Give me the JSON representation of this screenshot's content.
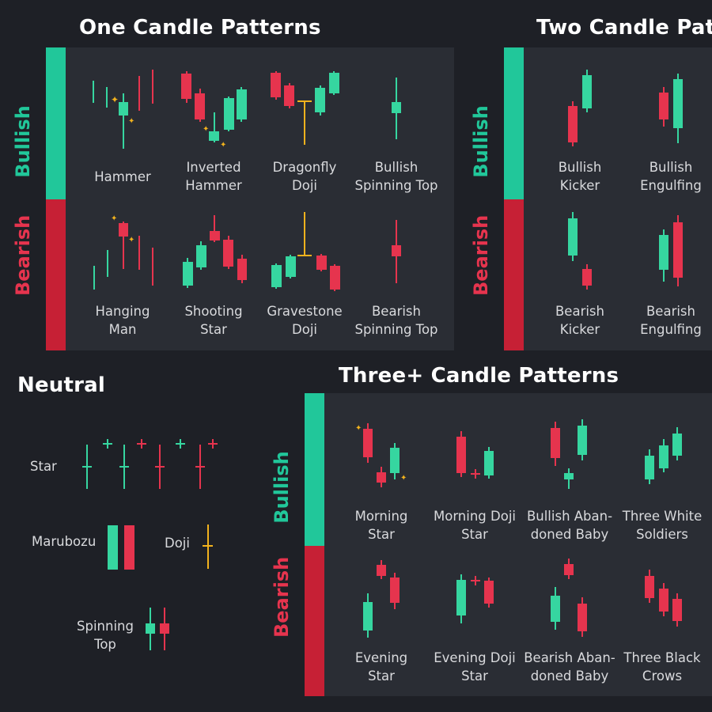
{
  "colors": {
    "background": "#1e2026",
    "panel": "#2a2d34",
    "bullish": "#21c79a",
    "bearish": "#c62035",
    "candle_green": "#36d6a0",
    "candle_red": "#e6344e",
    "doji_yellow": "#f2b21d"
  },
  "one_candle": {
    "title": "One Candle Patterns",
    "bullish_label": "Bullish",
    "bearish_label": "Bearish",
    "bullish": [
      {
        "line1": "Hammer",
        "line2": ""
      },
      {
        "line1": "Inverted",
        "line2": "Hammer"
      },
      {
        "line1": "Dragonfly",
        "line2": "Doji"
      },
      {
        "line1": "Bullish",
        "line2": "Spinning Top"
      }
    ],
    "bearish": [
      {
        "line1": "Hanging",
        "line2": "Man"
      },
      {
        "line1": "Shooting",
        "line2": "Star"
      },
      {
        "line1": "Gravestone",
        "line2": "Doji"
      },
      {
        "line1": "Bearish",
        "line2": "Spinning Top"
      }
    ]
  },
  "two_candle": {
    "title": "Two Candle Patte",
    "bullish_label": "Bullish",
    "bearish_label": "Bearish",
    "bullish": [
      {
        "line1": "Bullish",
        "line2": "Kicker"
      },
      {
        "line1": "Bullish",
        "line2": "Engulfing"
      }
    ],
    "bearish": [
      {
        "line1": "Bearish",
        "line2": "Kicker"
      },
      {
        "line1": "Bearish",
        "line2": "Engulfing"
      }
    ]
  },
  "neutral": {
    "title": "Neutral",
    "star": "Star",
    "marubozu": "Marubozu",
    "doji": "Doji",
    "spinning_top_1": "Spinning",
    "spinning_top_2": "Top"
  },
  "three_candle": {
    "title": "Three+ Candle Patterns",
    "bullish_label": "Bullish",
    "bearish_label": "Bearish",
    "bullish": [
      {
        "line1": "Morning",
        "line2": "Star"
      },
      {
        "line1": "Morning Doji",
        "line2": "Star"
      },
      {
        "line1": "Bullish Aban-",
        "line2": "doned Baby"
      },
      {
        "line1": "Three White",
        "line2": "Soldiers"
      }
    ],
    "bearish": [
      {
        "line1": "Evening",
        "line2": "Star"
      },
      {
        "line1": "Evening Doji",
        "line2": "Star"
      },
      {
        "line1": "Bearish Aban-",
        "line2": "doned Baby"
      },
      {
        "line1": "Three Black",
        "line2": "Crows"
      }
    ]
  }
}
